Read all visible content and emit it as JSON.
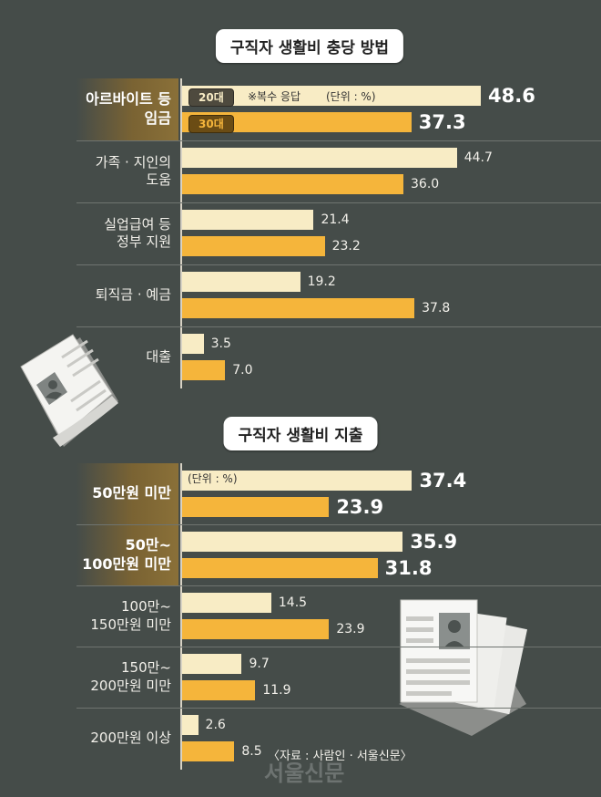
{
  "legend": {
    "y20": "20대",
    "y30": "30대",
    "note": "※복수 응답",
    "unit1": "(단위 : %)",
    "unit2": "(단위 : %)"
  },
  "source": "〈자료 : 사람인 · 서울신문〉",
  "watermark": "서울신문",
  "colors": {
    "background": "#454c49",
    "age20": "#f8ecc5",
    "age30": "#f5b53b",
    "highlight": "#7a6333"
  },
  "chart_data": [
    {
      "type": "bar",
      "title": "구직자 생활비 충당 방법",
      "categories": [
        "아르바이트 등 임금",
        "가족 · 지인의 도움",
        "실업급여 등 정부 지원",
        "퇴직금 · 예금",
        "대출"
      ],
      "series": [
        {
          "name": "20대",
          "values": [
            48.6,
            44.7,
            21.4,
            19.2,
            3.5
          ]
        },
        {
          "name": "30대",
          "values": [
            37.3,
            36.0,
            23.2,
            37.8,
            7.0
          ]
        }
      ],
      "value_labels": {
        "20대": [
          "48.6",
          "44.7",
          "21.4",
          "19.2",
          "3.5"
        ],
        "30대": [
          "37.3",
          "36.0",
          "23.2",
          "37.8",
          "7.0"
        ]
      },
      "highlighted_category": "아르바이트 등 임금"
    },
    {
      "type": "bar",
      "title": "구직자 생활비 지출",
      "categories": [
        "50만원 미만",
        "50만~ 100만원 미만",
        "100만~ 150만원 미만",
        "150만~ 200만원 미만",
        "200만원 이상"
      ],
      "series": [
        {
          "name": "20대",
          "values": [
            37.4,
            35.9,
            14.5,
            9.7,
            2.6
          ]
        },
        {
          "name": "30대",
          "values": [
            23.9,
            31.8,
            23.9,
            11.9,
            8.5
          ]
        }
      ],
      "value_labels": {
        "20대": [
          "37.4",
          "35.9",
          "14.5",
          "9.7",
          "2.6"
        ],
        "30대": [
          "23.9",
          "31.8",
          "23.9",
          "11.9",
          "8.5"
        ]
      },
      "highlighted_categories": [
        "50만원 미만",
        "50만~ 100만원 미만"
      ]
    }
  ],
  "labels": {
    "c1": {
      "cat0": [
        "아르바이트 등",
        "임금"
      ],
      "cat1": [
        "가족 · 지인의",
        "도움"
      ],
      "cat2": [
        "실업급여 등",
        "정부 지원"
      ],
      "cat3": [
        "퇴직금 · 예금"
      ],
      "cat4": [
        "대출"
      ]
    },
    "c2": {
      "cat0": [
        "50만원 미만"
      ],
      "cat1": [
        "50만~",
        "100만원 미만"
      ],
      "cat2": [
        "100만~",
        "150만원 미만"
      ],
      "cat3": [
        "150만~",
        "200만원 미만"
      ],
      "cat4": [
        "200만원 이상"
      ]
    }
  },
  "icons": [
    "resume-paper-icon",
    "resume-stack-icon"
  ]
}
